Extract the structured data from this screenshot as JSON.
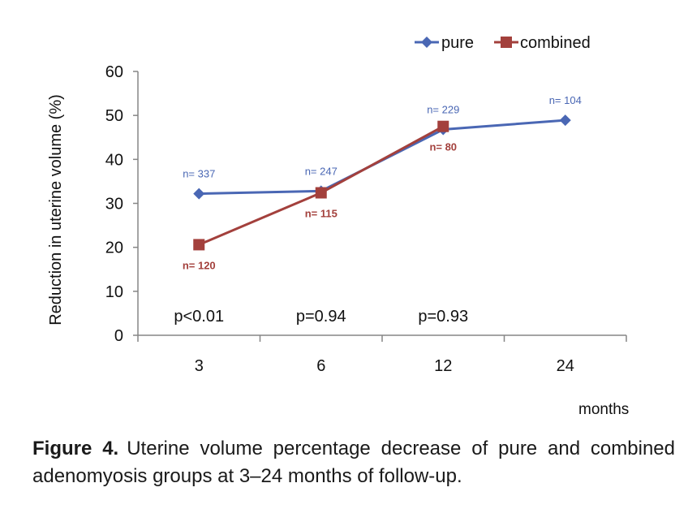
{
  "chart_data": {
    "type": "line",
    "title": "",
    "xlabel": "months",
    "ylabel": "Reduction in uterine volume (%)",
    "categories": [
      "3",
      "6",
      "12",
      "24"
    ],
    "ylim": [
      0,
      60
    ],
    "yticks": [
      "0",
      "10",
      "20",
      "30",
      "40",
      "50",
      "60"
    ],
    "legend_position": "top-right",
    "grid": false,
    "series": [
      {
        "name": "pure",
        "color": "#4a67b4",
        "marker": "diamond",
        "values": [
          32.2,
          32.8,
          46.8,
          48.9
        ],
        "labels": [
          "n= 337",
          "n= 247",
          "n= 229",
          "n= 104"
        ],
        "label_position": "above"
      },
      {
        "name": "combined",
        "color": "#a3403c",
        "marker": "square",
        "values": [
          20.6,
          32.4,
          47.5,
          null
        ],
        "labels": [
          "n= 120",
          "n= 115",
          "n= 80",
          null
        ],
        "label_position": "below"
      }
    ],
    "annotations": [
      "p<0.01",
      "p=0.94",
      "p=0.93",
      null
    ]
  },
  "caption": {
    "label": "Figure 4.",
    "text": "Uterine volume percentage decrease of pure and combined adenomyosis groups at 3–24 months of follow-up."
  }
}
